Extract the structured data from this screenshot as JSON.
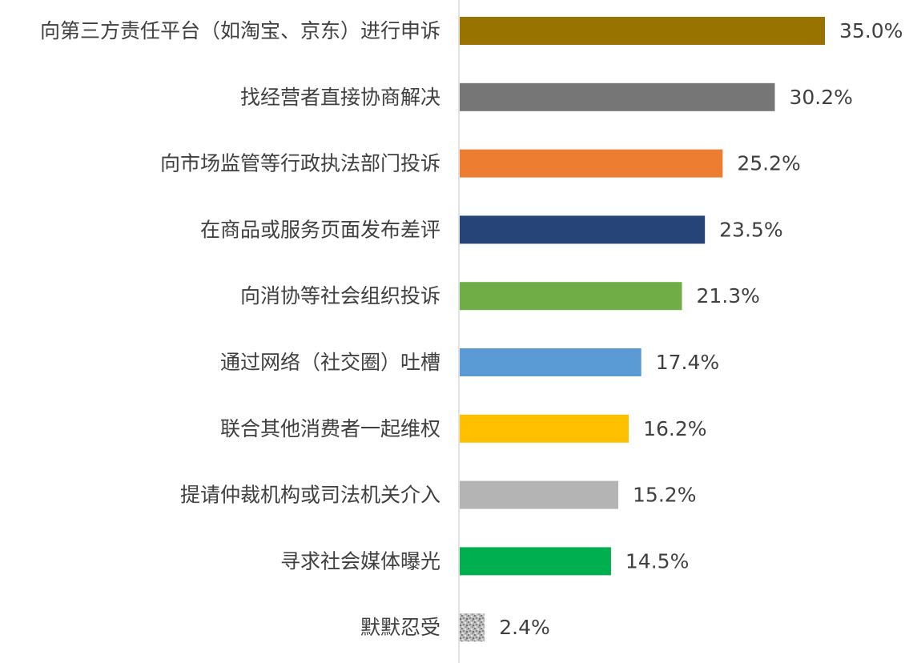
{
  "chart_data": {
    "type": "bar",
    "orientation": "horizontal",
    "title": "",
    "xlabel": "",
    "ylabel": "",
    "grid": false,
    "legend": "none",
    "xlim": [
      0,
      35
    ],
    "unit": "%",
    "categories": [
      "向第三方责任平台（如淘宝、京东）进行申诉",
      "找经营者直接协商解决",
      "向市场监管等行政执法部门投诉",
      "在商品或服务页面发布差评",
      "向消协等社会组织投诉",
      "通过网络（社交圈）吐槽",
      "联合其他消费者一起维权",
      "提请仲裁机构或司法机关介入",
      "寻求社会媒体曝光",
      "默默忍受"
    ],
    "values": [
      35.0,
      30.2,
      25.2,
      23.5,
      21.3,
      17.4,
      16.2,
      15.2,
      14.5,
      2.4
    ],
    "value_labels": [
      "35.0%",
      "30.2%",
      "25.2%",
      "23.5%",
      "21.3%",
      "17.4%",
      "16.2%",
      "15.2%",
      "14.5%",
      "2.4%"
    ],
    "colors": [
      "#987300",
      "#767676",
      "#ED7D31",
      "#264478",
      "#70AD47",
      "#5B9BD5",
      "#FFC000",
      "#B4B4B4",
      "#00B050",
      "#9A9A9A"
    ],
    "last_bar_fill": "pattern"
  }
}
